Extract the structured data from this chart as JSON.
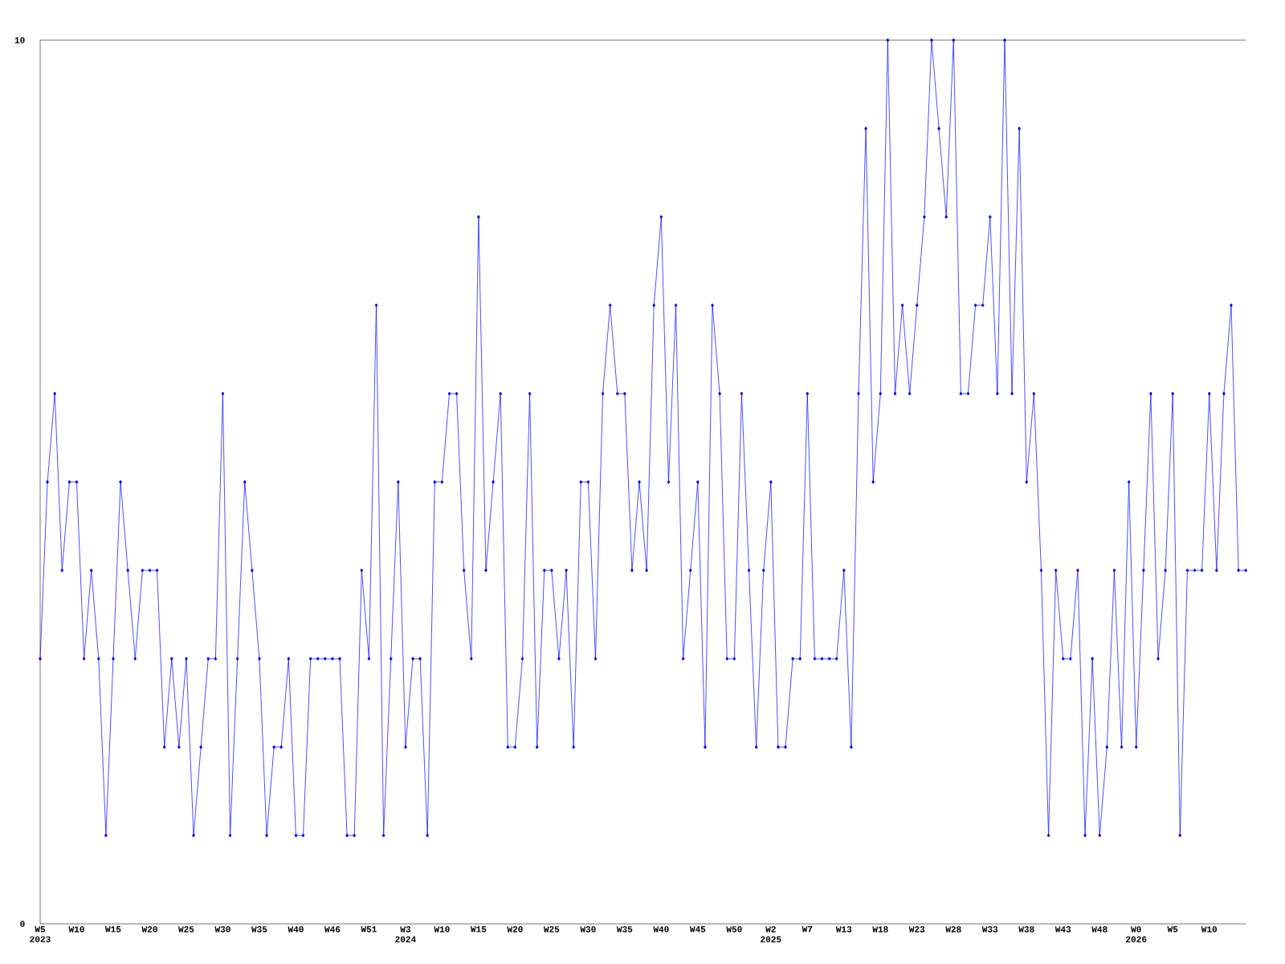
{
  "chart_data": {
    "type": "line",
    "categories": [
      "W5 2023",
      null,
      null,
      null,
      null,
      "W10",
      null,
      null,
      null,
      null,
      "W15",
      null,
      null,
      null,
      null,
      "W20",
      null,
      null,
      null,
      null,
      "W25",
      null,
      null,
      null,
      null,
      "W30",
      null,
      null,
      null,
      null,
      "W35",
      null,
      null,
      null,
      null,
      "W40",
      null,
      null,
      null,
      null,
      "W46",
      null,
      null,
      null,
      null,
      "W51",
      null,
      null,
      null,
      null,
      "W3 2024",
      null,
      null,
      null,
      null,
      "W10",
      null,
      null,
      null,
      null,
      "W15",
      null,
      null,
      null,
      null,
      "W20",
      null,
      null,
      null,
      null,
      "W25",
      null,
      null,
      null,
      null,
      "W30",
      null,
      null,
      null,
      null,
      "W35",
      null,
      null,
      null,
      null,
      "W40",
      null,
      null,
      null,
      null,
      "W45",
      null,
      null,
      null,
      null,
      "W50",
      null,
      null,
      null,
      null,
      "W2 2025",
      null,
      null,
      null,
      null,
      "W7",
      null,
      null,
      null,
      null,
      "W13",
      null,
      null,
      null,
      null,
      "W18",
      null,
      null,
      null,
      null,
      "W23",
      null,
      null,
      null,
      null,
      "W28",
      null,
      null,
      null,
      null,
      "W33",
      null,
      null,
      null,
      null,
      "W38",
      null,
      null,
      null,
      null,
      "W43",
      null,
      null,
      null,
      null,
      "W48",
      null,
      null,
      null,
      null,
      "W0 2026",
      null,
      null,
      null,
      null,
      "W5",
      null,
      null,
      null,
      null,
      "W10",
      null,
      null,
      null,
      null,
      null
    ],
    "values": [
      3,
      5,
      6,
      4,
      5,
      5,
      3,
      4,
      3,
      1,
      3,
      5,
      4,
      3,
      4,
      4,
      4,
      2,
      3,
      2,
      3,
      1,
      2,
      3,
      3,
      6,
      1,
      3,
      5,
      4,
      3,
      1,
      2,
      2,
      3,
      1,
      1,
      3,
      3,
      3,
      3,
      3,
      1,
      1,
      4,
      3,
      7,
      1,
      3,
      5,
      2,
      3,
      3,
      1,
      5,
      5,
      6,
      6,
      4,
      3,
      8,
      4,
      5,
      6,
      2,
      2,
      3,
      6,
      2,
      4,
      4,
      3,
      4,
      2,
      5,
      5,
      3,
      6,
      7,
      6,
      6,
      4,
      5,
      4,
      7,
      8,
      5,
      7,
      3,
      4,
      5,
      2,
      7,
      6,
      3,
      3,
      6,
      4,
      2,
      4,
      5,
      2,
      2,
      3,
      3,
      6,
      3,
      3,
      3,
      3,
      4,
      2,
      6,
      9,
      5,
      6,
      10,
      6,
      7,
      6,
      7,
      8,
      10,
      9,
      8,
      10,
      6,
      6,
      7,
      7,
      8,
      6,
      10,
      6,
      9,
      5,
      6,
      4,
      1,
      4,
      3,
      3,
      4,
      1,
      3,
      1,
      2,
      4,
      2,
      5,
      2,
      4,
      6,
      3,
      4,
      6,
      1,
      4,
      4,
      4,
      6,
      4,
      6,
      7,
      4,
      4
    ],
    "color": "#0000ff",
    "ylim": [
      0,
      10
    ],
    "yticks": [
      0,
      10
    ],
    "marker": "diamond",
    "grid": false
  }
}
